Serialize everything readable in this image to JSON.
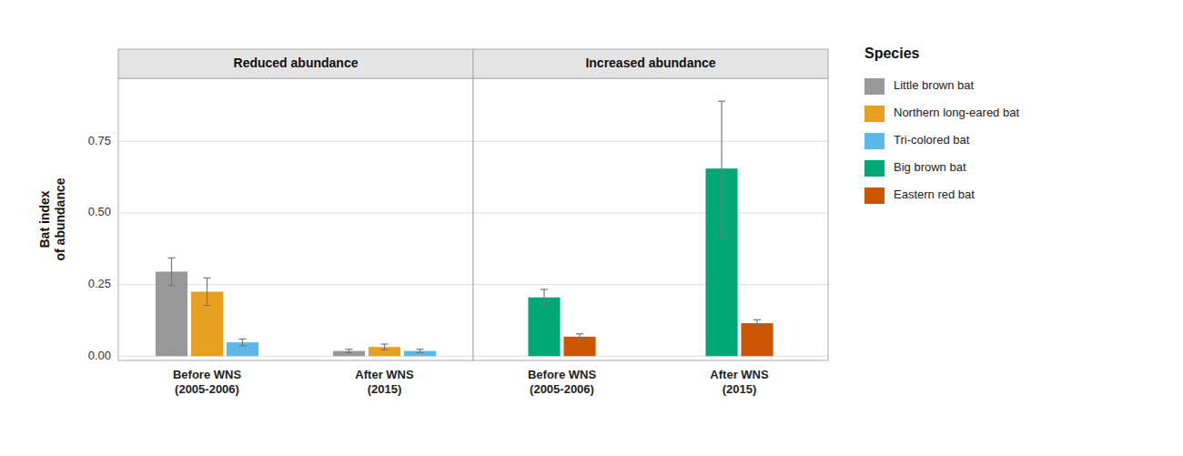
{
  "chart_data": [
    {
      "type": "bar",
      "title": "Reduced abundance",
      "ylabel": "Bat index\nof abundance",
      "categories": [
        "Before WNS\n(2005-2006)",
        "After WNS\n(2015)"
      ],
      "series": [
        {
          "name": "Little brown bat",
          "color": "#999999",
          "values": [
            0.295,
            0.018
          ],
          "errors": [
            0.048,
            0.006
          ]
        },
        {
          "name": "Northern long-eared bat",
          "color": "#E8A020",
          "values": [
            0.225,
            0.032
          ],
          "errors": [
            0.048,
            0.01
          ]
        },
        {
          "name": "Tri-colored bat",
          "color": "#5BB8E8",
          "values": [
            0.048,
            0.018
          ],
          "errors": [
            0.012,
            0.006
          ]
        }
      ],
      "ylim": [
        -0.015,
        0.97
      ],
      "yticks": [
        {
          "value": 0.0,
          "label": "0.00"
        },
        {
          "value": 0.25,
          "label": "0.25"
        },
        {
          "value": 0.5,
          "label": "0.50"
        },
        {
          "value": 0.75,
          "label": "0.75"
        }
      ],
      "grid": true,
      "legend": "right",
      "legend_title": "Species"
    },
    {
      "type": "bar",
      "title": "Increased abundance",
      "categories": [
        "Before WNS\n(2005-2006)",
        "After WNS\n(2015)"
      ],
      "series": [
        {
          "name": "Big brown bat",
          "color": "#00A878",
          "values": [
            0.205,
            0.655
          ],
          "errors": [
            0.028,
            0.235
          ]
        },
        {
          "name": "Eastern red bat",
          "color": "#CC5500",
          "values": [
            0.068,
            0.115
          ],
          "errors": [
            0.01,
            0.012
          ]
        }
      ],
      "ylim": [
        -0.015,
        0.97
      ],
      "yticks": [
        {
          "value": 0.0,
          "label": "0.00"
        },
        {
          "value": 0.25,
          "label": "0.25"
        },
        {
          "value": 0.5,
          "label": "0.50"
        },
        {
          "value": 0.75,
          "label": "0.75"
        }
      ],
      "grid": true,
      "tick_labels": "x"
    }
  ]
}
